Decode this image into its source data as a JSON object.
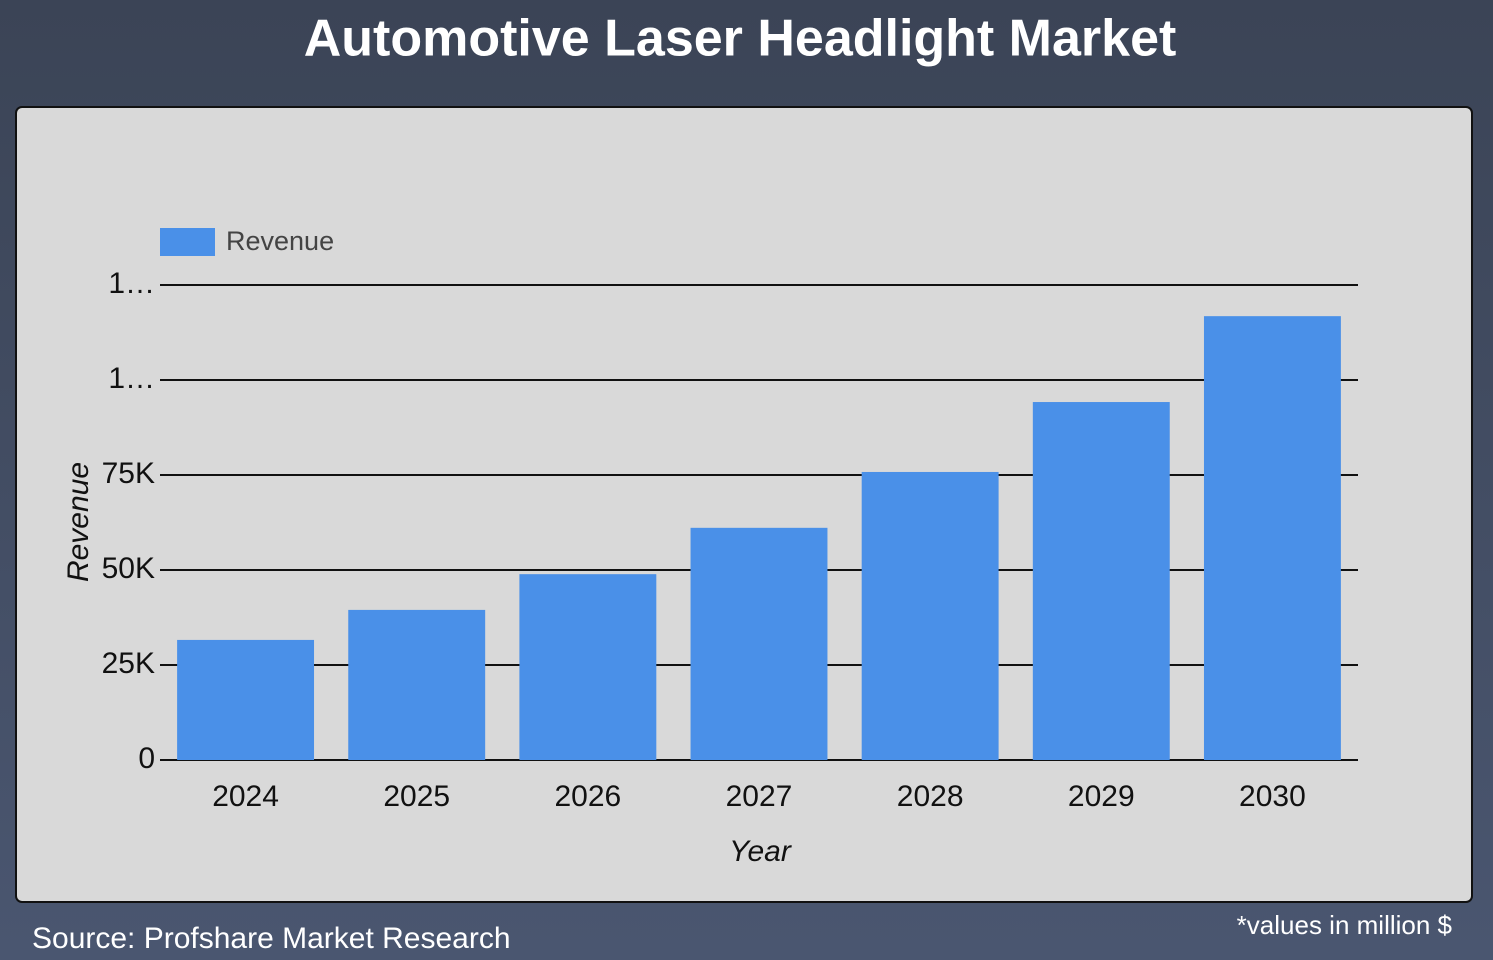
{
  "chart_data": {
    "type": "bar",
    "title": "Automotive Laser Headlight Market",
    "categories": [
      "2024",
      "2025",
      "2026",
      "2027",
      "2028",
      "2029",
      "2030"
    ],
    "series": [
      {
        "name": "Revenue",
        "color": "#4a90e8",
        "values": [
          31600,
          39500,
          48900,
          61100,
          75800,
          94200,
          116800
        ]
      }
    ],
    "x_label": "Year",
    "y_label": "Revenue",
    "ylim": [
      0,
      125000
    ],
    "yticks": [
      0,
      {
        "value": 25000,
        "label": "25K"
      },
      {
        "value": 50000,
        "label": "50K"
      },
      {
        "value": 75000,
        "label": "75K"
      },
      {
        "value": 100000,
        "label": "1…"
      },
      {
        "value": 125000,
        "label": "1…"
      }
    ],
    "grid": true,
    "legend": "top-left",
    "source": "Source: Profshare Market Research",
    "note": "*values in million $"
  }
}
